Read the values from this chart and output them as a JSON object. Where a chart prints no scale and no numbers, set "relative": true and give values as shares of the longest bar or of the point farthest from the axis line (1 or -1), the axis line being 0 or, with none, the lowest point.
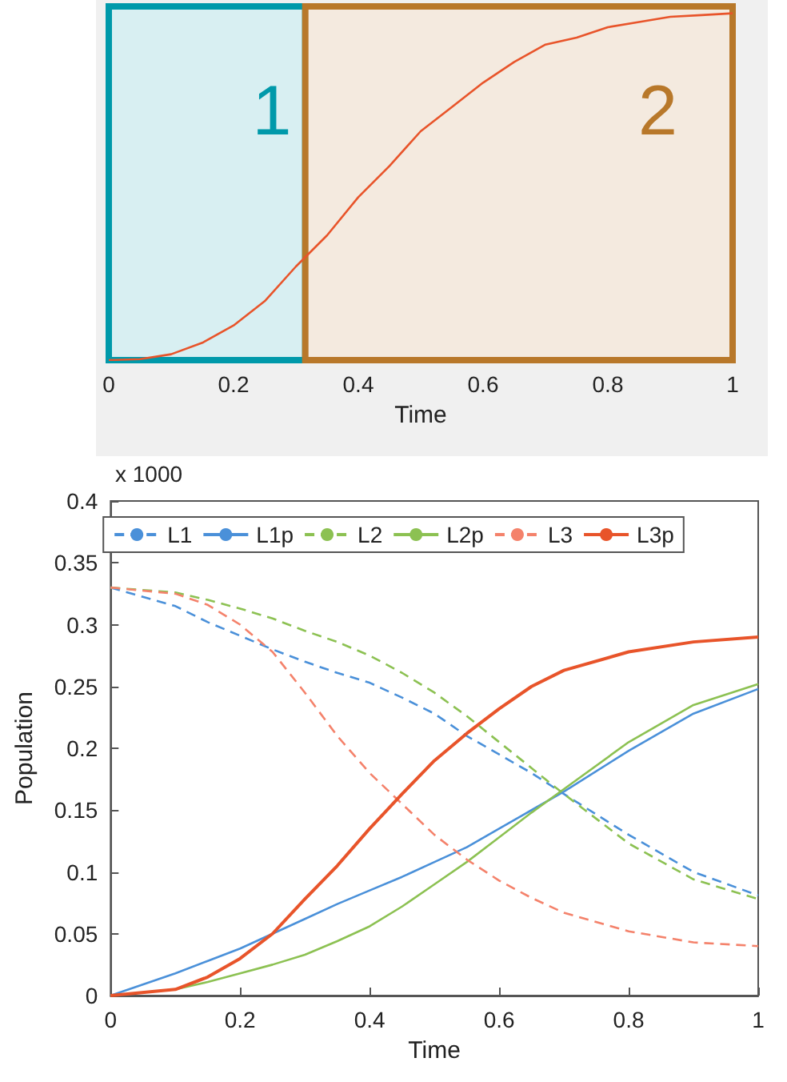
{
  "chart_data": [
    {
      "type": "line",
      "relative": true,
      "xlabel": "Time",
      "xlim": [
        0,
        1
      ],
      "xticks": [
        0,
        0.2,
        0.4,
        0.6,
        0.8,
        1
      ],
      "tick_labels": "x",
      "marker": "none",
      "x": [
        0,
        0.05,
        0.1,
        0.15,
        0.2,
        0.25,
        0.3,
        0.35,
        0.4,
        0.45,
        0.5,
        0.55,
        0.6,
        0.65,
        0.7,
        0.75,
        0.8,
        0.85,
        0.9,
        0.95,
        1
      ],
      "series": [
        {
          "color": "#e8542a",
          "line_style": "solid",
          "values": [
            0,
            0.003,
            0.017,
            0.05,
            0.1,
            0.17,
            0.27,
            0.36,
            0.47,
            0.56,
            0.66,
            0.73,
            0.8,
            0.86,
            0.91,
            0.93,
            0.96,
            0.975,
            0.99,
            0.995,
            1
          ]
        }
      ],
      "bands": [
        {
          "axis": "x",
          "from": 0,
          "to": 0.315,
          "label": "1",
          "color": "#0099aa"
        },
        {
          "axis": "x",
          "from": 0.315,
          "to": 1,
          "label": "2",
          "color": "#b8782a"
        }
      ]
    },
    {
      "type": "line",
      "xlabel": "Time",
      "ylabel": "Population",
      "annotations": [
        "x 1000"
      ],
      "xlim": [
        0,
        1
      ],
      "xticks": [
        0,
        0.2,
        0.4,
        0.6,
        0.8,
        1
      ],
      "ylim": [
        0,
        0.4
      ],
      "yticks": [
        0,
        0.05,
        0.1,
        0.15,
        0.2,
        0.25,
        0.3,
        0.35,
        0.4
      ],
      "legend": "top",
      "marker": "none",
      "x": [
        0,
        0.1,
        0.15,
        0.2,
        0.25,
        0.3,
        0.35,
        0.4,
        0.45,
        0.5,
        0.55,
        0.6,
        0.65,
        0.7,
        0.8,
        0.9,
        1
      ],
      "series": [
        {
          "name": "L1",
          "color": "#4a90d9",
          "line_style": "dashed",
          "values": [
            0.33,
            0.315,
            0.302,
            0.291,
            0.28,
            0.27,
            0.261,
            0.253,
            0.241,
            0.228,
            0.21,
            0.195,
            0.18,
            0.163,
            0.13,
            0.1,
            0.081
          ]
        },
        {
          "name": "L1p",
          "color": "#4a90d9",
          "line_style": "solid",
          "values": [
            0,
            0.018,
            0.028,
            0.038,
            0.05,
            0.062,
            0.074,
            0.085,
            0.096,
            0.108,
            0.12,
            0.135,
            0.15,
            0.165,
            0.198,
            0.228,
            0.248
          ]
        },
        {
          "name": "L2",
          "color": "#8cc152",
          "line_style": "dashed",
          "values": [
            0.33,
            0.326,
            0.32,
            0.313,
            0.305,
            0.295,
            0.286,
            0.275,
            0.261,
            0.245,
            0.226,
            0.205,
            0.184,
            0.163,
            0.123,
            0.094,
            0.078
          ]
        },
        {
          "name": "L2p",
          "color": "#8cc152",
          "line_style": "solid",
          "values": [
            0,
            0.005,
            0.011,
            0.018,
            0.025,
            0.033,
            0.044,
            0.056,
            0.072,
            0.09,
            0.108,
            0.128,
            0.148,
            0.167,
            0.205,
            0.235,
            0.252
          ]
        },
        {
          "name": "L3",
          "color": "#f4826b",
          "line_style": "dashed",
          "values": [
            0.33,
            0.325,
            0.316,
            0.3,
            0.278,
            0.245,
            0.21,
            0.18,
            0.155,
            0.13,
            0.11,
            0.093,
            0.079,
            0.067,
            0.052,
            0.043,
            0.04
          ]
        },
        {
          "name": "L3p",
          "color": "#e8542a",
          "line_style": "solid",
          "values": [
            0,
            0.005,
            0.015,
            0.03,
            0.05,
            0.078,
            0.105,
            0.135,
            0.163,
            0.19,
            0.212,
            0.232,
            0.25,
            0.263,
            0.278,
            0.286,
            0.29
          ]
        }
      ]
    }
  ]
}
